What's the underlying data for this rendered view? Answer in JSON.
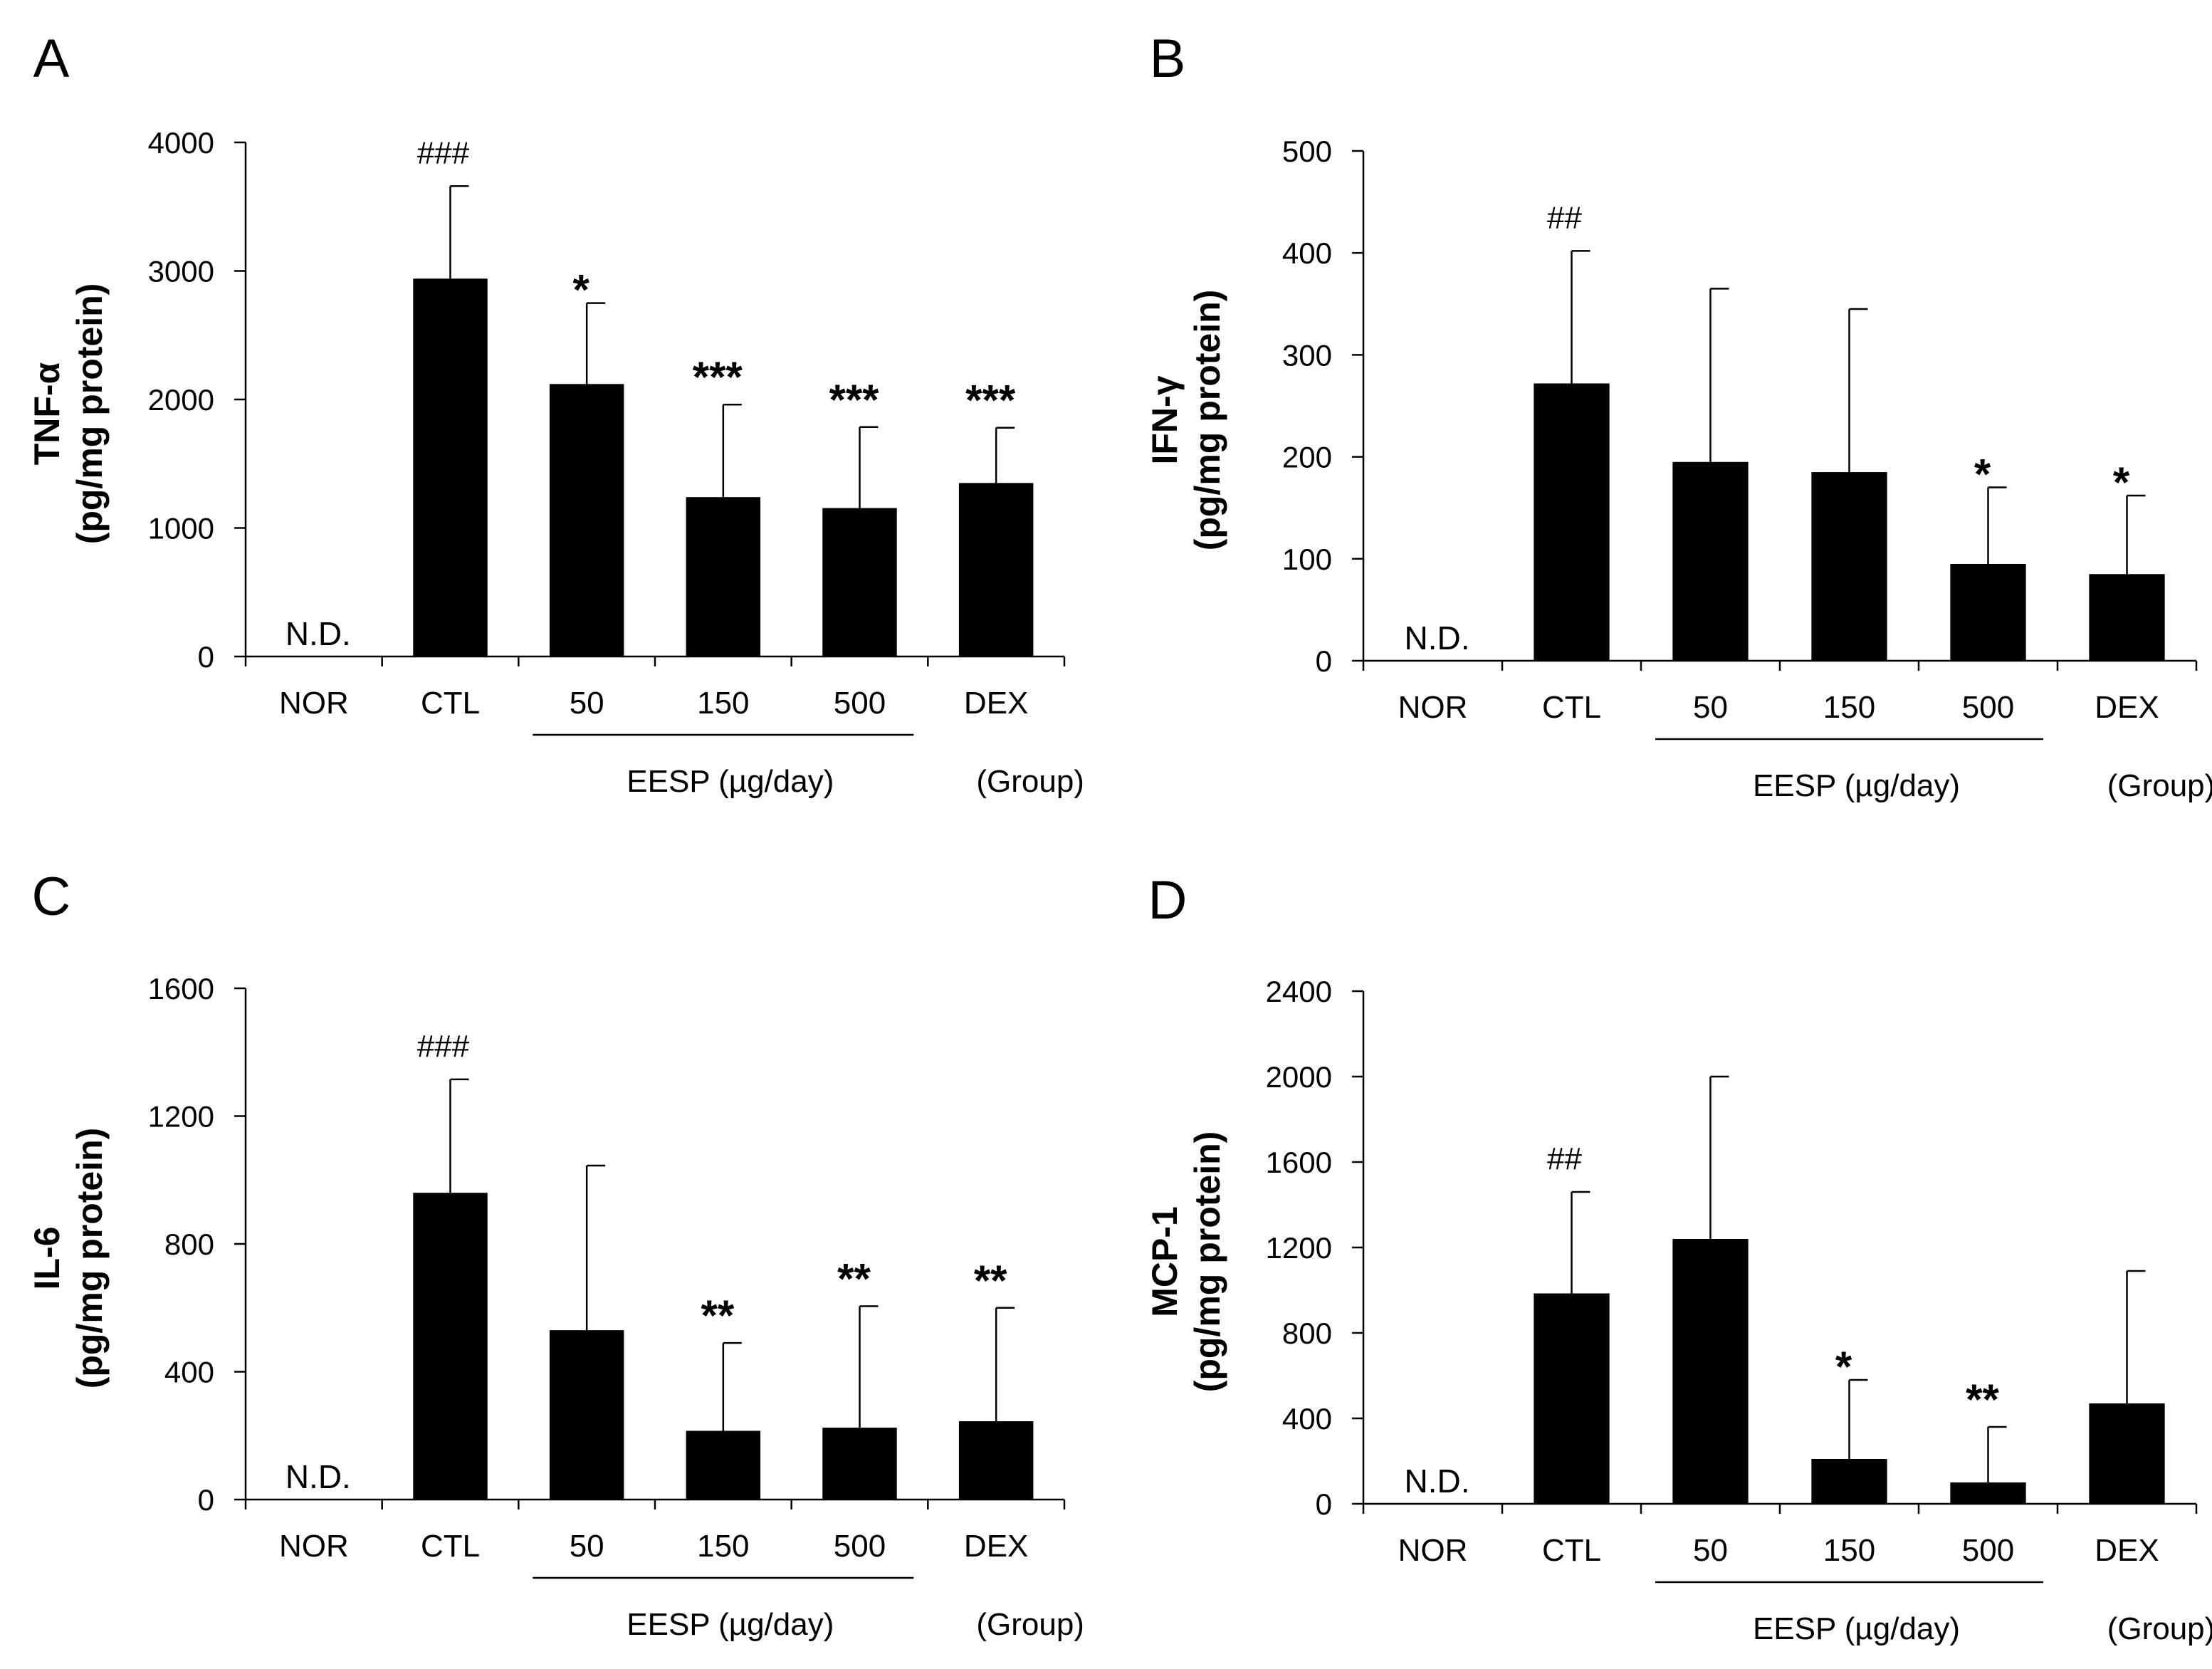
{
  "chart_data": [
    {
      "panel": "A",
      "type": "bar",
      "categories": [
        "NOR",
        "CTL",
        "50",
        "150",
        "500",
        "DEX"
      ],
      "values": [
        0,
        2940,
        2120,
        1240,
        1155,
        1350
      ],
      "errors": [
        0,
        720,
        630,
        720,
        630,
        430
      ],
      "bar_labels": [
        "N.D.",
        "###",
        "*",
        "***",
        "***",
        "***"
      ],
      "ylabel_line1": "TNF-α",
      "ylabel_line2": "(pg/mg protein)",
      "ylim": [
        0,
        4000
      ],
      "yticks": [
        0,
        1000,
        2000,
        3000,
        4000
      ],
      "group_label": "EESP (µg/day)",
      "group_suffix": "(Group)"
    },
    {
      "panel": "B",
      "type": "bar",
      "categories": [
        "NOR",
        "CTL",
        "50",
        "150",
        "500",
        "DEX"
      ],
      "values": [
        0,
        272,
        195,
        185,
        95,
        85
      ],
      "errors": [
        0,
        130,
        170,
        160,
        75,
        77
      ],
      "bar_labels": [
        "N.D.",
        "##",
        "",
        "",
        "*",
        "*"
      ],
      "ylabel_line1": "IFN-γ",
      "ylabel_line2": "(pg/mg protein)",
      "ylim": [
        0,
        500
      ],
      "yticks": [
        0,
        100,
        200,
        300,
        400,
        500
      ],
      "group_label": "EESP (µg/day)",
      "group_suffix": "(Group)"
    },
    {
      "panel": "C",
      "type": "bar",
      "categories": [
        "NOR",
        "CTL",
        "50",
        "150",
        "500",
        "DEX"
      ],
      "values": [
        0,
        960,
        530,
        215,
        225,
        245
      ],
      "errors": [
        0,
        355,
        515,
        275,
        380,
        355
      ],
      "bar_labels": [
        "N.D.",
        "###",
        "",
        "**",
        "**",
        "**"
      ],
      "ylabel_line1": "IL-6",
      "ylabel_line2": "(pg/mg protein)",
      "ylim": [
        0,
        1600
      ],
      "yticks": [
        0,
        400,
        800,
        1200,
        1600
      ],
      "group_label": "EESP (µg/day)",
      "group_suffix": "(Group)"
    },
    {
      "panel": "D",
      "type": "bar",
      "categories": [
        "NOR",
        "CTL",
        "50",
        "150",
        "500",
        "DEX"
      ],
      "values": [
        0,
        985,
        1240,
        210,
        100,
        470
      ],
      "errors": [
        0,
        475,
        760,
        370,
        260,
        620
      ],
      "bar_labels": [
        "N.D.",
        "##",
        "",
        "*",
        "**",
        ""
      ],
      "ylabel_line1": "MCP-1",
      "ylabel_line2": "(pg/mg protein)",
      "ylim": [
        0,
        2400
      ],
      "yticks": [
        0,
        400,
        800,
        1200,
        1600,
        2000,
        2400
      ],
      "group_label": "EESP (µg/day)",
      "group_suffix": "(Group)"
    }
  ]
}
